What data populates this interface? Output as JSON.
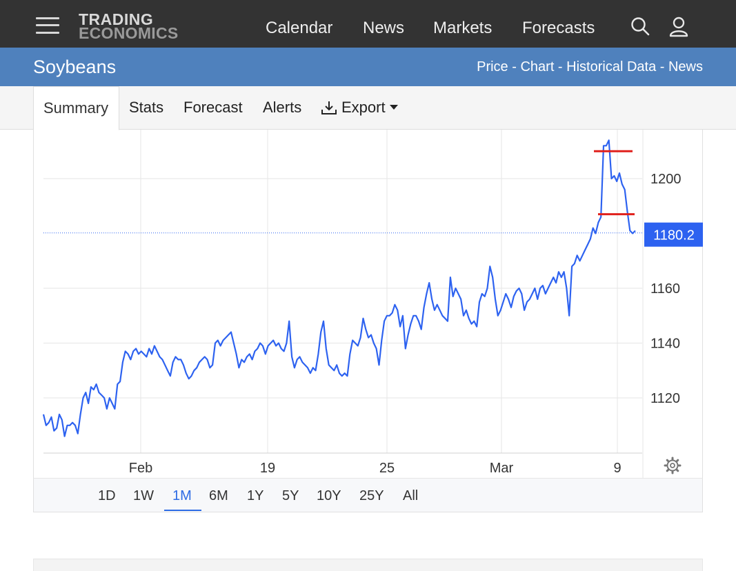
{
  "brand": {
    "line1": "TRADING",
    "line2": "ECONOMICS"
  },
  "nav": [
    "Calendar",
    "News",
    "Markets",
    "Forecasts"
  ],
  "header": {
    "title": "Soybeans",
    "links": [
      "Price",
      "Chart",
      "Historical Data",
      "News"
    ],
    "separator": " - "
  },
  "tabs": {
    "summary": "Summary",
    "stats": "Stats",
    "forecast": "Forecast",
    "alerts": "Alerts",
    "export": "Export"
  },
  "ranges": [
    "1D",
    "1W",
    "1M",
    "6M",
    "1Y",
    "5Y",
    "10Y",
    "25Y",
    "All"
  ],
  "active_range": "1M",
  "colors": {
    "topbar": "#333333",
    "header": "#4f81bd",
    "line": "#2d62f0",
    "marker": "#e0201c",
    "accent": "#2d6be4"
  },
  "chart_data": {
    "type": "line",
    "title": "",
    "xlabel": "",
    "ylabel": "",
    "x_tick_labels": [
      "Feb",
      "19",
      "25",
      "Mar",
      "9"
    ],
    "y_ticks": [
      1120,
      1140,
      1160,
      1200
    ],
    "ylim": [
      1100,
      1218
    ],
    "last_price_label": "1180.2",
    "last_price": 1180.2,
    "grid": true,
    "horizontal_markers": [
      1210,
      1187
    ],
    "series": [
      {
        "values": [
          1114,
          1110,
          1111,
          1113,
          1108,
          1109,
          1114,
          1112,
          1106,
          1110,
          1110,
          1111,
          1110,
          1107,
          1114,
          1120,
          1122,
          1118,
          1124,
          1123,
          1125,
          1122,
          1121,
          1120,
          1116,
          1120,
          1118,
          1116,
          1125,
          1126,
          1133,
          1137,
          1136,
          1134,
          1137,
          1138,
          1136,
          1137,
          1136,
          1135,
          1138,
          1136,
          1139,
          1137,
          1135,
          1134,
          1132,
          1130,
          1128,
          1133,
          1135,
          1134,
          1134,
          1132,
          1129,
          1127,
          1128,
          1130,
          1131,
          1133,
          1134,
          1135,
          1134,
          1131,
          1132,
          1140,
          1141,
          1139,
          1141,
          1142,
          1143,
          1144,
          1140,
          1136,
          1131,
          1134,
          1133,
          1135,
          1136,
          1134,
          1137,
          1138,
          1140,
          1139,
          1136,
          1139,
          1140,
          1141,
          1139,
          1140,
          1138,
          1137,
          1140,
          1148,
          1135,
          1131,
          1134,
          1135,
          1133,
          1132,
          1131,
          1129,
          1131,
          1130,
          1136,
          1144,
          1148,
          1138,
          1132,
          1131,
          1130,
          1132,
          1129,
          1128,
          1129,
          1128,
          1136,
          1141,
          1140,
          1139,
          1142,
          1149,
          1145,
          1142,
          1143,
          1140,
          1138,
          1132,
          1141,
          1148,
          1150,
          1150,
          1151,
          1154,
          1152,
          1146,
          1150,
          1138,
          1143,
          1147,
          1150,
          1150,
          1148,
          1145,
          1153,
          1158,
          1162,
          1156,
          1152,
          1154,
          1152,
          1150,
          1149,
          1148,
          1164,
          1157,
          1160,
          1158,
          1156,
          1150,
          1152,
          1149,
          1147,
          1148,
          1146,
          1155,
          1158,
          1157,
          1160,
          1168,
          1164,
          1156,
          1150,
          1152,
          1155,
          1158,
          1156,
          1153,
          1157,
          1159,
          1160,
          1158,
          1152,
          1155,
          1156,
          1158,
          1160,
          1156,
          1160,
          1161,
          1158,
          1160,
          1162,
          1164,
          1162,
          1166,
          1164,
          1166,
          1160,
          1150,
          1168,
          1169,
          1172,
          1170,
          1172,
          1174,
          1176,
          1178,
          1182,
          1180,
          1184,
          1186,
          1212,
          1212,
          1214,
          1200,
          1201,
          1199,
          1202,
          1198,
          1196,
          1188,
          1181,
          1180,
          1181
        ]
      }
    ]
  }
}
